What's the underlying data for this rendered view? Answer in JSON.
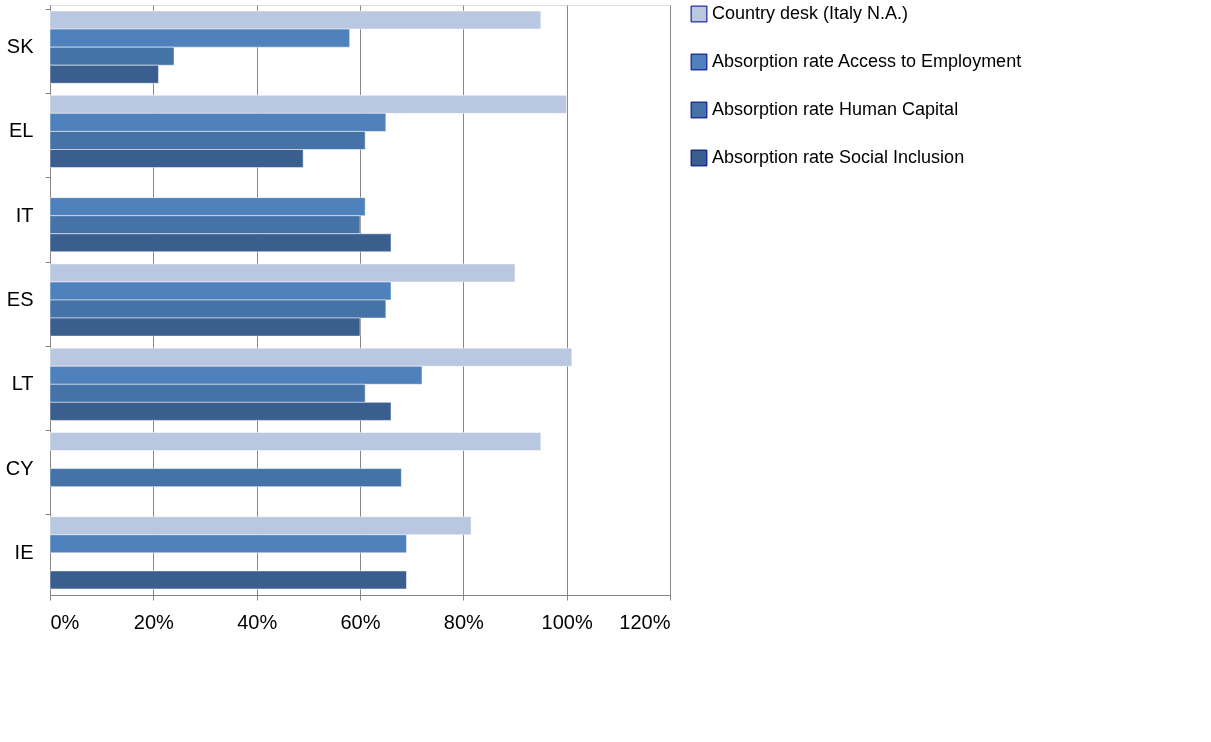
{
  "chart_data": {
    "type": "bar",
    "orientation": "horizontal",
    "categories": [
      "SK",
      "EL",
      "IT",
      "ES",
      "LT",
      "CY",
      "IE"
    ],
    "series": [
      {
        "name": "Country desk (Italy N.A.)",
        "color": "#b9c7e0",
        "values": [
          95,
          100,
          null,
          90,
          101,
          95,
          81.5
        ]
      },
      {
        "name": "Absorption rate Access to Employment",
        "color": "#4f81bd",
        "values": [
          58,
          65,
          61,
          66,
          72,
          null,
          69
        ]
      },
      {
        "name": "Absorption rate Human Capital",
        "color": "#4573a7",
        "values": [
          24,
          61,
          60,
          65,
          61,
          68,
          null
        ]
      },
      {
        "name": "Absorption rate Social Inclusion",
        "color": "#3a5f8f",
        "values": [
          21,
          49,
          66,
          60,
          66,
          null,
          69
        ]
      }
    ],
    "xlim": [
      0,
      120
    ],
    "xticks": [
      {
        "value": 0,
        "label": "0%"
      },
      {
        "value": 20,
        "label": "20%"
      },
      {
        "value": 40,
        "label": "40%"
      },
      {
        "value": 60,
        "label": "60%"
      },
      {
        "value": 80,
        "label": "80%"
      },
      {
        "value": 100,
        "label": "100%"
      },
      {
        "value": 120,
        "label": "120%"
      }
    ],
    "grid": "x",
    "legend": "right"
  }
}
